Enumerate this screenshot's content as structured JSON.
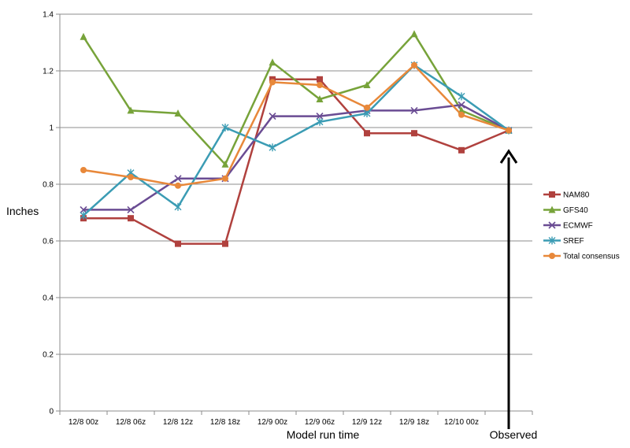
{
  "chart_data": {
    "type": "line",
    "title": "",
    "xlabel": "Model run time",
    "ylabel": "Inches",
    "ylim": [
      0,
      1.4
    ],
    "yticks": [
      "0",
      "0.2",
      "0.4",
      "0.6",
      "0.8",
      "1",
      "1.2",
      "1.4"
    ],
    "categories": [
      "12/8 00z",
      "12/8 06z",
      "12/8 12z",
      "12/8 18z",
      "12/9 00z",
      "12/9 06z",
      "12/9 12z",
      "12/9 18z",
      "12/10 00z",
      ""
    ],
    "grid": "horizontal",
    "legend_position": "right",
    "series": [
      {
        "name": "NAM80",
        "color": "#b0413e",
        "marker": "square",
        "values": [
          0.68,
          0.68,
          0.59,
          0.59,
          1.17,
          1.17,
          0.98,
          0.98,
          0.92,
          0.99
        ]
      },
      {
        "name": "GFS40",
        "color": "#77a33a",
        "marker": "triangle",
        "values": [
          1.32,
          1.06,
          1.05,
          0.87,
          1.23,
          1.1,
          1.15,
          1.33,
          1.06,
          0.99
        ]
      },
      {
        "name": "ECMWF",
        "color": "#6a4c93",
        "marker": "x",
        "values": [
          0.71,
          0.71,
          0.82,
          0.82,
          1.04,
          1.04,
          1.06,
          1.06,
          1.08,
          0.99
        ]
      },
      {
        "name": "SREF",
        "color": "#3b9cb4",
        "marker": "star",
        "values": [
          0.69,
          0.84,
          0.72,
          1.0,
          0.93,
          1.02,
          1.05,
          1.22,
          1.11,
          0.99
        ]
      },
      {
        "name": "Total consensus",
        "color": "#e8883a",
        "marker": "circle",
        "values": [
          0.85,
          0.825,
          0.795,
          0.82,
          1.16,
          1.15,
          1.07,
          1.22,
          1.045,
          0.99
        ]
      }
    ],
    "annotations": [
      {
        "text": "Observed",
        "arrow_to_category_index": 9
      }
    ]
  }
}
